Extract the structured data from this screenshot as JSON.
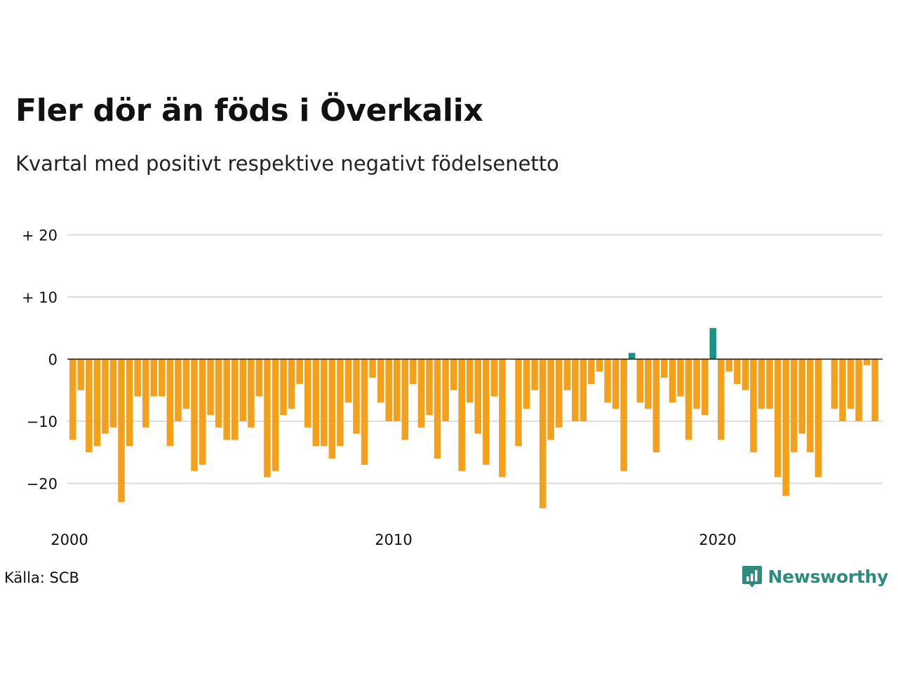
{
  "title": "Fler dör än föds i Överkalix",
  "subtitle": "Kvartal med positivt respektive negativt födelsenetto",
  "source": "Källa: SCB",
  "brand": "Newsworthy",
  "colors": {
    "positive": "#1a9183",
    "negative": "#f5a01a",
    "grid": "#dddddd",
    "brand": "#2e8b7e"
  },
  "chart_data": {
    "type": "bar",
    "x_start_year": 2000,
    "periods_per_year": 4,
    "y_ticks": [
      {
        "value": 20,
        "label": "+ 20"
      },
      {
        "value": 10,
        "label": "+ 10"
      },
      {
        "value": 0,
        "label": "0"
      },
      {
        "value": -10,
        "label": "−10"
      },
      {
        "value": -20,
        "label": "−20"
      }
    ],
    "x_ticks": [
      {
        "year": 2000,
        "label": "2000"
      },
      {
        "year": 2010,
        "label": "2010"
      },
      {
        "year": 2020,
        "label": "2020"
      }
    ],
    "ylim": [
      -25,
      20
    ],
    "grid": true,
    "values": [
      -13,
      -5,
      -15,
      -14,
      -12,
      -11,
      -23,
      -14,
      -6,
      -11,
      -6,
      -6,
      -14,
      -10,
      -8,
      -18,
      -17,
      -9,
      -11,
      -13,
      -13,
      -10,
      -11,
      -6,
      -19,
      -18,
      -9,
      -8,
      -4,
      -11,
      -14,
      -14,
      -16,
      -14,
      -7,
      -12,
      -17,
      -3,
      -7,
      -10,
      -10,
      -13,
      -4,
      -11,
      -9,
      -16,
      -10,
      -5,
      -18,
      -7,
      -12,
      -17,
      -6,
      -19,
      0,
      -14,
      -8,
      -5,
      -24,
      -13,
      -11,
      -5,
      -10,
      -10,
      -4,
      -2,
      -7,
      -8,
      -18,
      1,
      -7,
      -8,
      -15,
      -3,
      -7,
      -6,
      -13,
      -8,
      -9,
      5,
      -13,
      -2,
      -4,
      -5,
      -15,
      -8,
      -8,
      -19,
      -22,
      -15,
      -12,
      -15,
      -19,
      0,
      -8,
      -10,
      -8,
      -10,
      -1,
      -10
    ]
  }
}
